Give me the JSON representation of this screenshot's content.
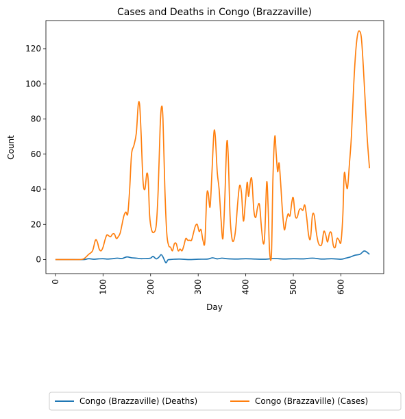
{
  "chart_data": {
    "type": "line",
    "title": "Cases and Deaths in Congo (Brazzaville)",
    "xlabel": "Day",
    "ylabel": "Count",
    "xlim": [
      -20,
      690
    ],
    "ylim": [
      -8,
      136
    ],
    "xticks": [
      0,
      100,
      200,
      300,
      400,
      500,
      600
    ],
    "yticks": [
      0,
      20,
      40,
      60,
      80,
      100,
      120
    ],
    "grid": false,
    "legend_position": "bottom-center",
    "series": [
      {
        "name": "Congo (Brazzaville) (Deaths)",
        "color": "#1f77b4",
        "points": [
          [
            0,
            0
          ],
          [
            40,
            0
          ],
          [
            60,
            0
          ],
          [
            70,
            0.5
          ],
          [
            80,
            0.2
          ],
          [
            90,
            0.4
          ],
          [
            100,
            0.5
          ],
          [
            110,
            0.3
          ],
          [
            120,
            0.5
          ],
          [
            130,
            0.8
          ],
          [
            140,
            0.6
          ],
          [
            150,
            1.5
          ],
          [
            160,
            1.0
          ],
          [
            170,
            0.8
          ],
          [
            180,
            0.5
          ],
          [
            190,
            0.6
          ],
          [
            200,
            0.8
          ],
          [
            205,
            1.8
          ],
          [
            212,
            0.4
          ],
          [
            218,
            1.5
          ],
          [
            222,
            2.8
          ],
          [
            226,
            1.5
          ],
          [
            232,
            -1.8
          ],
          [
            236,
            -0.3
          ],
          [
            240,
            0
          ],
          [
            260,
            0.3
          ],
          [
            280,
            0
          ],
          [
            300,
            0.2
          ],
          [
            320,
            0.3
          ],
          [
            330,
            1.0
          ],
          [
            340,
            0.4
          ],
          [
            350,
            0.8
          ],
          [
            360,
            0.5
          ],
          [
            380,
            0.3
          ],
          [
            400,
            0.5
          ],
          [
            420,
            0.3
          ],
          [
            440,
            0.2
          ],
          [
            460,
            0.6
          ],
          [
            480,
            0.3
          ],
          [
            500,
            0.5
          ],
          [
            520,
            0.4
          ],
          [
            540,
            0.8
          ],
          [
            560,
            0.3
          ],
          [
            580,
            0.5
          ],
          [
            600,
            0.2
          ],
          [
            610,
            0.8
          ],
          [
            620,
            1.5
          ],
          [
            630,
            2.5
          ],
          [
            640,
            3.0
          ],
          [
            648,
            4.8
          ],
          [
            653,
            4.5
          ],
          [
            660,
            3.0
          ]
        ]
      },
      {
        "name": "Congo (Brazzaville) (Cases)",
        "color": "#ff7f0e",
        "points": [
          [
            0,
            0
          ],
          [
            30,
            0
          ],
          [
            50,
            0
          ],
          [
            60,
            0.5
          ],
          [
            70,
            3
          ],
          [
            78,
            5
          ],
          [
            84,
            11
          ],
          [
            88,
            10
          ],
          [
            92,
            6
          ],
          [
            96,
            5
          ],
          [
            100,
            7
          ],
          [
            104,
            11
          ],
          [
            108,
            14
          ],
          [
            112,
            13.5
          ],
          [
            116,
            13
          ],
          [
            120,
            14.5
          ],
          [
            124,
            14.5
          ],
          [
            128,
            12
          ],
          [
            132,
            13
          ],
          [
            136,
            15
          ],
          [
            140,
            20
          ],
          [
            144,
            25
          ],
          [
            148,
            27
          ],
          [
            152,
            26
          ],
          [
            156,
            40
          ],
          [
            160,
            60
          ],
          [
            165,
            65
          ],
          [
            170,
            72
          ],
          [
            174,
            88
          ],
          [
            177,
            88
          ],
          [
            180,
            72
          ],
          [
            184,
            45
          ],
          [
            188,
            40
          ],
          [
            192,
            49
          ],
          [
            195,
            45
          ],
          [
            198,
            25
          ],
          [
            202,
            17
          ],
          [
            207,
            15.5
          ],
          [
            212,
            20
          ],
          [
            216,
            40
          ],
          [
            220,
            75
          ],
          [
            223,
            87
          ],
          [
            226,
            80
          ],
          [
            230,
            40
          ],
          [
            234,
            15
          ],
          [
            238,
            8
          ],
          [
            242,
            7
          ],
          [
            246,
            5
          ],
          [
            250,
            9
          ],
          [
            254,
            9
          ],
          [
            258,
            5
          ],
          [
            262,
            6
          ],
          [
            266,
            5
          ],
          [
            270,
            8
          ],
          [
            274,
            12
          ],
          [
            278,
            11
          ],
          [
            282,
            11
          ],
          [
            286,
            11
          ],
          [
            290,
            15
          ],
          [
            294,
            19
          ],
          [
            298,
            20
          ],
          [
            302,
            16
          ],
          [
            306,
            17
          ],
          [
            310,
            11
          ],
          [
            314,
            10
          ],
          [
            318,
            36
          ],
          [
            321,
            38
          ],
          [
            325,
            30
          ],
          [
            329,
            50
          ],
          [
            333,
            72
          ],
          [
            336,
            70
          ],
          [
            340,
            50
          ],
          [
            344,
            40
          ],
          [
            348,
            23
          ],
          [
            352,
            12
          ],
          [
            356,
            35
          ],
          [
            360,
            66
          ],
          [
            363,
            60
          ],
          [
            367,
            25
          ],
          [
            371,
            12
          ],
          [
            375,
            11
          ],
          [
            379,
            18
          ],
          [
            383,
            32
          ],
          [
            387,
            42
          ],
          [
            391,
            38
          ],
          [
            395,
            22
          ],
          [
            399,
            32
          ],
          [
            403,
            44
          ],
          [
            406,
            36
          ],
          [
            410,
            45
          ],
          [
            413,
            45
          ],
          [
            417,
            28
          ],
          [
            421,
            24
          ],
          [
            425,
            30
          ],
          [
            429,
            31
          ],
          [
            433,
            18
          ],
          [
            437,
            9
          ],
          [
            440,
            15
          ],
          [
            444,
            44
          ],
          [
            447,
            30
          ],
          [
            450,
            5
          ],
          [
            454,
            3
          ],
          [
            457,
            45
          ],
          [
            461,
            70
          ],
          [
            464,
            60
          ],
          [
            467,
            50
          ],
          [
            470,
            55
          ],
          [
            473,
            45
          ],
          [
            477,
            28
          ],
          [
            481,
            17
          ],
          [
            485,
            22
          ],
          [
            489,
            26
          ],
          [
            493,
            25
          ],
          [
            497,
            33
          ],
          [
            500,
            35
          ],
          [
            504,
            25
          ],
          [
            508,
            24
          ],
          [
            512,
            28
          ],
          [
            516,
            29
          ],
          [
            520,
            28
          ],
          [
            524,
            31
          ],
          [
            528,
            24
          ],
          [
            532,
            14
          ],
          [
            536,
            12
          ],
          [
            540,
            25
          ],
          [
            544,
            25
          ],
          [
            548,
            16
          ],
          [
            552,
            10
          ],
          [
            556,
            8
          ],
          [
            560,
            9
          ],
          [
            564,
            16
          ],
          [
            568,
            14
          ],
          [
            572,
            10
          ],
          [
            576,
            15
          ],
          [
            580,
            15
          ],
          [
            584,
            8
          ],
          [
            588,
            7
          ],
          [
            592,
            12
          ],
          [
            596,
            11
          ],
          [
            600,
            10
          ],
          [
            604,
            25
          ],
          [
            607,
            49
          ],
          [
            611,
            43
          ],
          [
            614,
            41
          ],
          [
            618,
            55
          ],
          [
            622,
            70
          ],
          [
            627,
            100
          ],
          [
            631,
            118
          ],
          [
            635,
            128
          ],
          [
            639,
            130
          ],
          [
            643,
            126
          ],
          [
            647,
            110
          ],
          [
            651,
            90
          ],
          [
            655,
            70
          ],
          [
            660,
            52
          ]
        ]
      }
    ]
  }
}
